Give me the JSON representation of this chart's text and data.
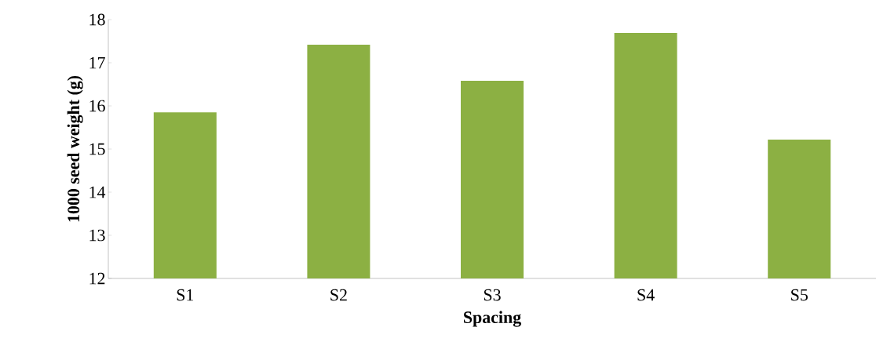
{
  "chart_data": {
    "type": "bar",
    "xlabel": "Spacing",
    "ylabel": "1000 seed weight (g)",
    "categories": [
      "S1",
      "S2",
      "S3",
      "S4",
      "S5"
    ],
    "values": [
      15.85,
      17.42,
      16.58,
      17.69,
      15.22
    ],
    "color": "#8cb043",
    "ylim": [
      12,
      18
    ],
    "yticks": [
      12,
      13,
      14,
      15,
      16,
      17,
      18
    ],
    "grid": false
  }
}
